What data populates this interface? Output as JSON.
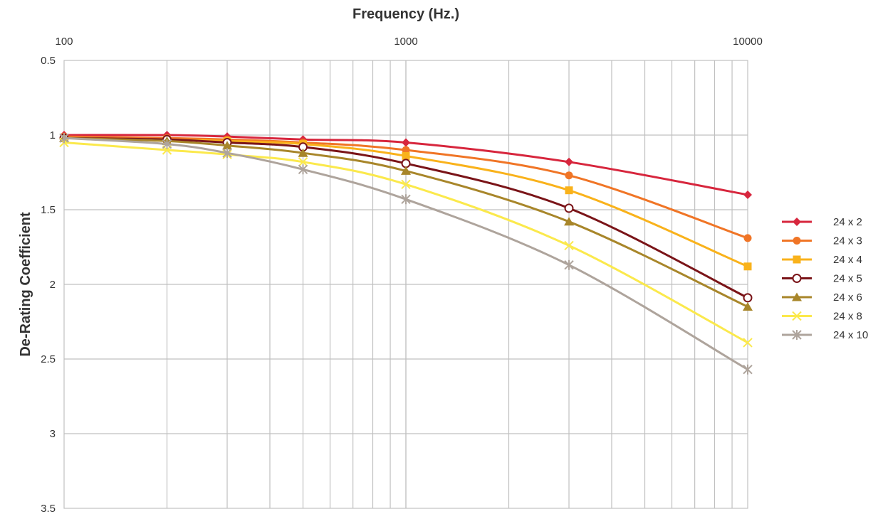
{
  "chart_data": {
    "type": "line",
    "title": "",
    "xlabel": "Frequency (Hz.)",
    "ylabel": "De-Rating Coefficient",
    "x_scale": "log",
    "x_axis_position": "top",
    "y_inverted": true,
    "xlim": [
      100,
      10000
    ],
    "ylim": [
      0.5,
      3.5
    ],
    "x_tick_labels": [
      "100",
      "1000",
      "10000"
    ],
    "y_tick_labels": [
      "0.5",
      "1",
      "1.5",
      "2",
      "2.5",
      "3",
      "3.5"
    ],
    "grid": true,
    "legend_position": "right",
    "x": [
      100,
      200,
      300,
      500,
      1000,
      3000,
      10000
    ],
    "series": [
      {
        "name": "24 x 2",
        "color": "#d7263d",
        "marker": "diamond",
        "values": [
          1.0,
          1.0,
          1.01,
          1.03,
          1.05,
          1.18,
          1.4
        ]
      },
      {
        "name": "24 x 3",
        "color": "#f07526",
        "marker": "circle",
        "values": [
          1.01,
          1.02,
          1.03,
          1.05,
          1.1,
          1.27,
          1.69
        ]
      },
      {
        "name": "24 x 4",
        "color": "#f9b21b",
        "marker": "square",
        "values": [
          1.02,
          1.03,
          1.04,
          1.06,
          1.14,
          1.37,
          1.88
        ]
      },
      {
        "name": "24 x 5",
        "color": "#7a1418",
        "marker": "circle-open",
        "values": [
          1.02,
          1.03,
          1.05,
          1.08,
          1.19,
          1.49,
          2.09
        ]
      },
      {
        "name": "24 x 6",
        "color": "#a8862a",
        "marker": "triangle",
        "values": [
          1.02,
          1.04,
          1.07,
          1.12,
          1.24,
          1.58,
          2.15
        ]
      },
      {
        "name": "24 x 8",
        "color": "#fbe94c",
        "marker": "x",
        "values": [
          1.05,
          1.1,
          1.13,
          1.18,
          1.33,
          1.74,
          2.39
        ]
      },
      {
        "name": "24 x 10",
        "color": "#aea49c",
        "marker": "star",
        "values": [
          1.02,
          1.06,
          1.12,
          1.23,
          1.43,
          1.87,
          2.57
        ]
      }
    ]
  }
}
